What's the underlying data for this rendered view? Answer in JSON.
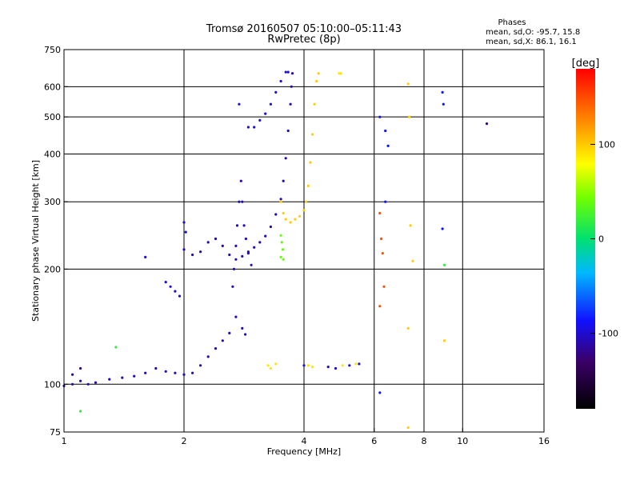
{
  "chart_data": {
    "type": "scatter",
    "title": "Tromsø 20160507 05:10:00–05:11:43",
    "subtitle": "RwPretec (8p)",
    "phase_box": {
      "heading": "Phases",
      "line_o": "mean, sd,O: -95.7, 15.8",
      "line_x": "mean, sd,X:  86.1, 16.1"
    },
    "xlabel": "Frequency [MHz]",
    "ylabel": "Stationary phase Virtual Height [km]",
    "x_scale": "log",
    "y_scale": "log",
    "xlim": [
      1,
      16
    ],
    "ylim": [
      75,
      750
    ],
    "x_ticks": [
      {
        "value": 1,
        "label": "1"
      },
      {
        "value": 2,
        "label": "2"
      },
      {
        "value": 4,
        "label": "4"
      },
      {
        "value": 6,
        "label": "6"
      },
      {
        "value": 8,
        "label": "8"
      },
      {
        "value": 10,
        "label": "10"
      },
      {
        "value": 16,
        "label": "16"
      }
    ],
    "y_ticks": [
      {
        "value": 75,
        "label": "75"
      },
      {
        "value": 100,
        "label": "100"
      },
      {
        "value": 200,
        "label": "200"
      },
      {
        "value": 300,
        "label": "300"
      },
      {
        "value": 400,
        "label": "400"
      },
      {
        "value": 500,
        "label": "500"
      },
      {
        "value": 600,
        "label": "600"
      },
      {
        "value": 750,
        "label": "750"
      }
    ],
    "x_grid": [
      2,
      4,
      6,
      8,
      10
    ],
    "y_grid": [
      100,
      200,
      300,
      400,
      500,
      600
    ],
    "grid": true,
    "colorbar": {
      "label": "[deg]",
      "min": -180,
      "max": 180,
      "ticks": [
        {
          "value": 100,
          "label": "100"
        },
        {
          "value": 0,
          "label": "0"
        },
        {
          "value": -100,
          "label": "-100"
        }
      ]
    },
    "traces": [
      {
        "phase": -110,
        "points": [
          [
            1.0,
            99
          ],
          [
            1.05,
            100
          ],
          [
            1.1,
            102
          ],
          [
            1.15,
            100
          ],
          [
            1.2,
            101
          ],
          [
            1.3,
            103
          ],
          [
            1.4,
            104
          ],
          [
            1.5,
            105
          ],
          [
            1.6,
            107
          ],
          [
            1.7,
            110
          ],
          [
            1.8,
            108
          ],
          [
            1.9,
            107
          ],
          [
            2.0,
            106
          ],
          [
            2.1,
            107
          ],
          [
            2.2,
            112
          ],
          [
            2.3,
            118
          ],
          [
            2.4,
            124
          ],
          [
            2.5,
            130
          ],
          [
            2.6,
            136
          ]
        ]
      },
      {
        "phase": -110,
        "points": [
          [
            2.0,
            225
          ],
          [
            2.1,
            218
          ],
          [
            2.2,
            222
          ],
          [
            2.3,
            235
          ],
          [
            2.4,
            240
          ],
          [
            2.5,
            230
          ],
          [
            2.6,
            218
          ],
          [
            2.7,
            212
          ],
          [
            2.8,
            216
          ],
          [
            2.9,
            222
          ],
          [
            3.0,
            228
          ],
          [
            3.1,
            235
          ],
          [
            3.2,
            244
          ],
          [
            3.3,
            258
          ],
          [
            3.4,
            278
          ],
          [
            3.5,
            305
          ],
          [
            3.55,
            340
          ],
          [
            3.6,
            390
          ],
          [
            3.65,
            460
          ],
          [
            3.7,
            540
          ],
          [
            3.72,
            600
          ],
          [
            3.74,
            650
          ]
        ]
      },
      {
        "phase": -100,
        "points": [
          [
            2.75,
            540
          ],
          [
            2.9,
            470
          ],
          [
            3.0,
            470
          ],
          [
            3.1,
            490
          ],
          [
            3.2,
            510
          ],
          [
            3.3,
            540
          ],
          [
            3.4,
            580
          ],
          [
            3.5,
            620
          ],
          [
            3.6,
            655
          ],
          [
            3.65,
            655
          ]
        ]
      },
      {
        "phase": -105,
        "points": [
          [
            2.65,
            180
          ],
          [
            2.67,
            200
          ],
          [
            2.7,
            230
          ],
          [
            2.72,
            260
          ],
          [
            2.75,
            300
          ],
          [
            2.78,
            340
          ],
          [
            2.8,
            300
          ],
          [
            2.83,
            260
          ],
          [
            2.86,
            240
          ],
          [
            2.9,
            220
          ],
          [
            2.95,
            205
          ],
          [
            2.7,
            150
          ],
          [
            2.8,
            140
          ],
          [
            2.85,
            135
          ]
        ]
      },
      {
        "phase": 100,
        "points": [
          [
            3.5,
            300
          ],
          [
            3.55,
            280
          ],
          [
            3.6,
            270
          ],
          [
            3.7,
            265
          ],
          [
            3.8,
            270
          ],
          [
            3.9,
            275
          ],
          [
            4.0,
            285
          ],
          [
            4.05,
            300
          ],
          [
            4.1,
            330
          ],
          [
            4.15,
            380
          ],
          [
            4.2,
            450
          ],
          [
            4.25,
            540
          ],
          [
            4.3,
            620
          ],
          [
            4.35,
            650
          ]
        ]
      },
      {
        "phase": 40,
        "points": [
          [
            3.5,
            245
          ],
          [
            3.52,
            235
          ],
          [
            3.54,
            225
          ],
          [
            3.5,
            215
          ],
          [
            3.55,
            212
          ]
        ]
      },
      {
        "phase": -100,
        "points": [
          [
            1.6,
            215
          ],
          [
            1.8,
            185
          ],
          [
            1.85,
            180
          ],
          [
            1.9,
            175
          ],
          [
            1.95,
            170
          ],
          [
            2.0,
            265
          ],
          [
            2.02,
            250
          ]
        ]
      },
      {
        "phase": 90,
        "points": [
          [
            4.9,
            650
          ],
          [
            4.95,
            650
          ],
          [
            3.25,
            112
          ],
          [
            3.3,
            110
          ],
          [
            3.4,
            113
          ],
          [
            4.1,
            112
          ],
          [
            4.2,
            111
          ],
          [
            4.6,
            111
          ],
          [
            5.0,
            112
          ],
          [
            5.4,
            113
          ]
        ]
      },
      {
        "phase": -100,
        "points": [
          [
            4.6,
            111
          ],
          [
            4.8,
            110
          ],
          [
            5.2,
            112
          ],
          [
            5.5,
            113
          ],
          [
            4.0,
            112
          ]
        ]
      },
      {
        "phase": 150,
        "points": [
          [
            6.2,
            280
          ],
          [
            6.25,
            240
          ],
          [
            6.3,
            220
          ],
          [
            6.35,
            180
          ],
          [
            6.2,
            160
          ]
        ]
      },
      {
        "phase": -90,
        "points": [
          [
            6.2,
            500
          ],
          [
            6.4,
            460
          ],
          [
            6.5,
            420
          ],
          [
            6.4,
            300
          ],
          [
            6.2,
            95
          ],
          [
            8.9,
            580
          ],
          [
            8.95,
            540
          ],
          [
            8.9,
            255
          ]
        ]
      },
      {
        "phase": 100,
        "points": [
          [
            7.3,
            610
          ],
          [
            7.35,
            500
          ],
          [
            7.4,
            260
          ],
          [
            7.5,
            210
          ],
          [
            7.3,
            140
          ],
          [
            7.3,
            77
          ],
          [
            9.0,
            130
          ]
        ]
      },
      {
        "phase": 20,
        "points": [
          [
            9.0,
            205
          ],
          [
            1.1,
            85
          ],
          [
            1.35,
            125
          ]
        ]
      },
      {
        "phase": -120,
        "points": [
          [
            11.5,
            480
          ],
          [
            1.05,
            106
          ],
          [
            1.1,
            110
          ]
        ]
      }
    ]
  }
}
